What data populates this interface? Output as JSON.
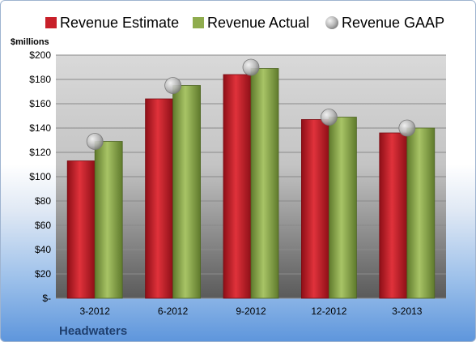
{
  "chart_data": {
    "type": "bar",
    "categories": [
      "3-2012",
      "6-2012",
      "9-2012",
      "12-2012",
      "3-2013"
    ],
    "series": [
      {
        "name": "Revenue Estimate",
        "type": "bar",
        "values": [
          113,
          164,
          184,
          147,
          136
        ]
      },
      {
        "name": "Revenue Actual",
        "type": "bar",
        "values": [
          129,
          175,
          189,
          149,
          140
        ]
      },
      {
        "name": "Revenue GAAP",
        "type": "scatter",
        "values": [
          129,
          175,
          190,
          149,
          140
        ]
      }
    ],
    "ylabel": "$millions",
    "ylim": [
      0,
      200
    ],
    "yticks": [
      0,
      20,
      40,
      60,
      80,
      100,
      120,
      140,
      160,
      180,
      200
    ],
    "ytick_labels": [
      "$-",
      "$20",
      "$40",
      "$60",
      "$80",
      "$100",
      "$120",
      "$140",
      "$160",
      "$180",
      "$200"
    ],
    "grid": true,
    "legend": "top",
    "company": "Headwaters",
    "colors": {
      "estimate": "#c8202a",
      "actual": "#8fac4e",
      "gaap": "#b8b8b8",
      "plot_top": "#d9d9d9",
      "plot_bottom": "#5a5a5a",
      "company_text": "#1f3f6e"
    }
  }
}
